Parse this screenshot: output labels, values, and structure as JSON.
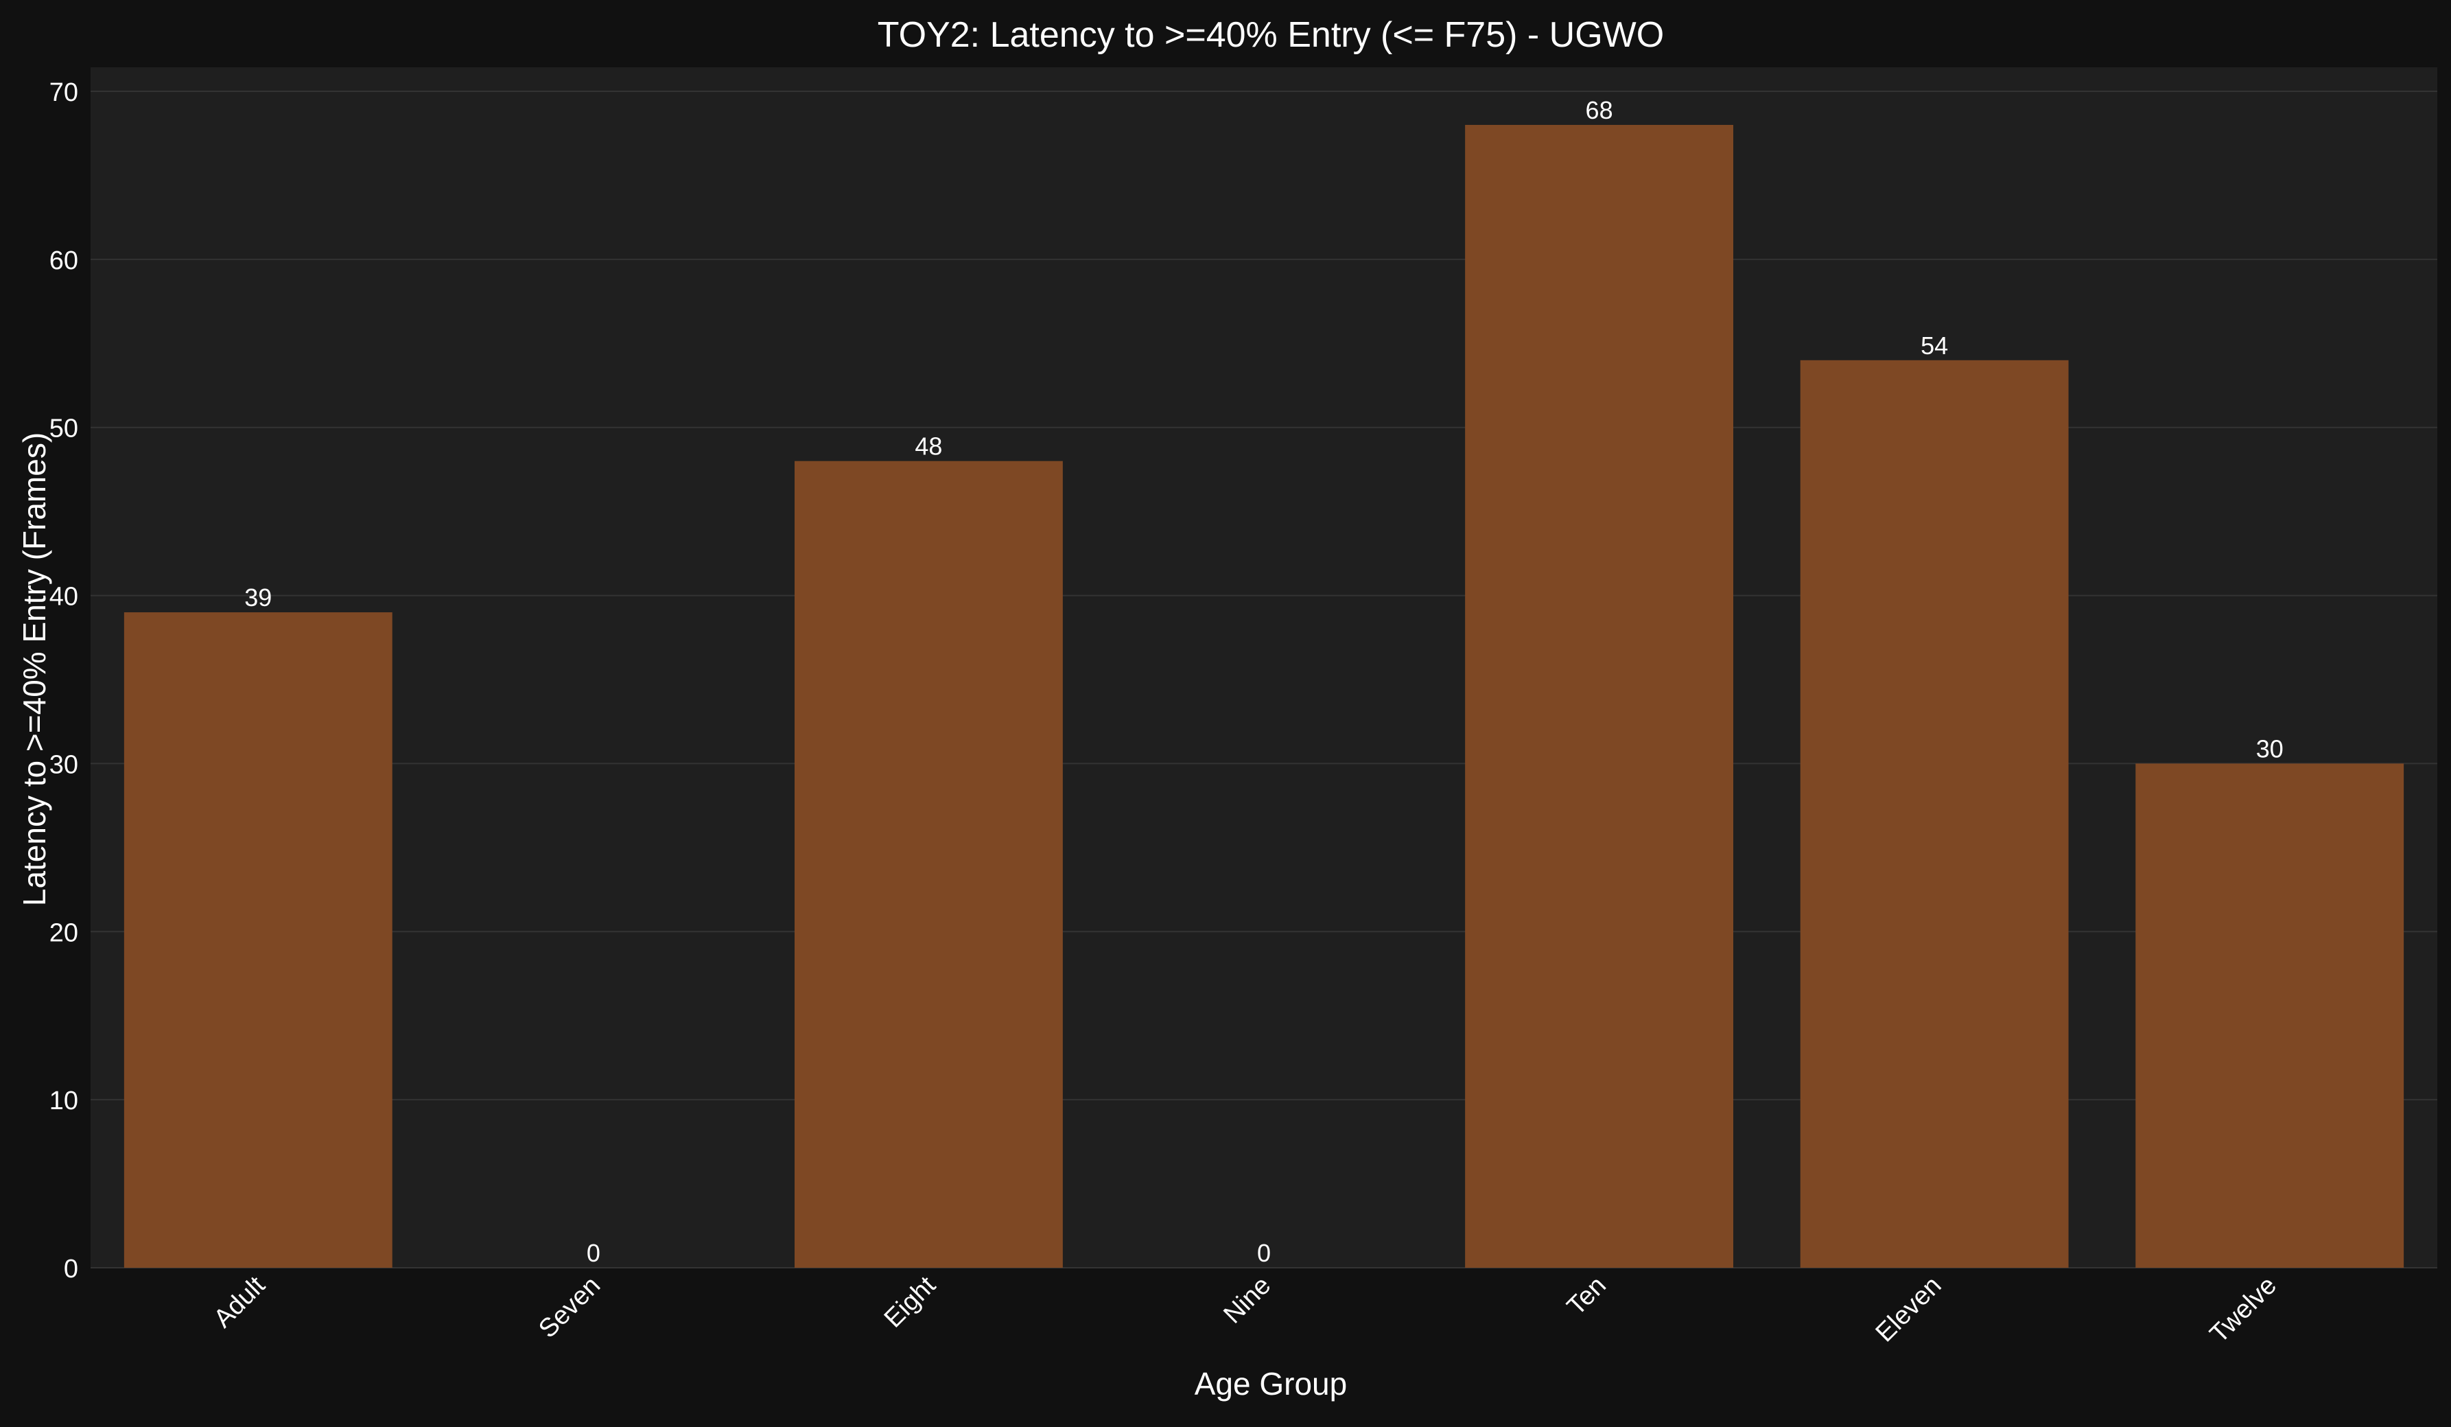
{
  "chart_data": {
    "type": "bar",
    "title": "TOY2: Latency to >=40% Entry (<= F75) - UGWO",
    "xlabel": "Age Group",
    "ylabel": "Latency to >=40% Entry (Frames)",
    "categories": [
      "Adult",
      "Seven",
      "Eight",
      "Nine",
      "Ten",
      "Eleven",
      "Twelve"
    ],
    "values": [
      39,
      0,
      48,
      0,
      68,
      54,
      30
    ],
    "data_labels": [
      "39",
      "0",
      "48",
      "0",
      "68",
      "54",
      "30"
    ],
    "ylim": [
      0,
      70
    ],
    "yticks": [
      0,
      10,
      20,
      30,
      40,
      50,
      60,
      70
    ],
    "grid": "horizontal",
    "legend": "none",
    "colors": {
      "page_background": "#111111",
      "plot_background": "#1f1f1f",
      "bar": "#7e4824",
      "grid": "#333333",
      "text": "#ffffff"
    }
  }
}
